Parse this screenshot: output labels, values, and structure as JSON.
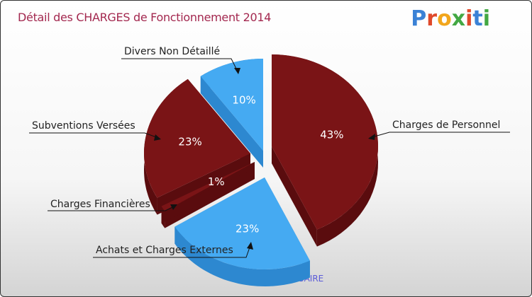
{
  "header": {
    "title": "Détail des CHARGES de Fonctionnement 2014",
    "logo_letters": [
      "P",
      "r",
      "o",
      "x",
      "i",
      "t",
      "i"
    ],
    "logo_colors": [
      "#3b82d6",
      "#e0492b",
      "#f2a61c",
      "#43a843",
      "#e0492b",
      "#3b82d6",
      "#43a843"
    ]
  },
  "chart_data": {
    "type": "pie",
    "title": "Détail des CHARGES de Fonctionnement 2014",
    "subtitle": "LA CHAUSSAIRE",
    "series": [
      {
        "name": "Charges de Personnel",
        "value": 43,
        "label": "43%",
        "color": "#7a1416",
        "side_color": "#5a0c0e"
      },
      {
        "name": "Achats et Charges Externes",
        "value": 23,
        "label": "23%",
        "color": "#45aaf2",
        "side_color": "#2d88d0"
      },
      {
        "name": "Charges Financières",
        "value": 1,
        "label": "1%",
        "color": "#7a1416",
        "side_color": "#5a0c0e"
      },
      {
        "name": "Subventions Versées",
        "value": 23,
        "label": "23%",
        "color": "#7a1416",
        "side_color": "#5a0c0e"
      },
      {
        "name": "Divers Non Détaillé",
        "value": 10,
        "label": "10%",
        "color": "#45aaf2",
        "side_color": "#2d88d0"
      }
    ]
  }
}
